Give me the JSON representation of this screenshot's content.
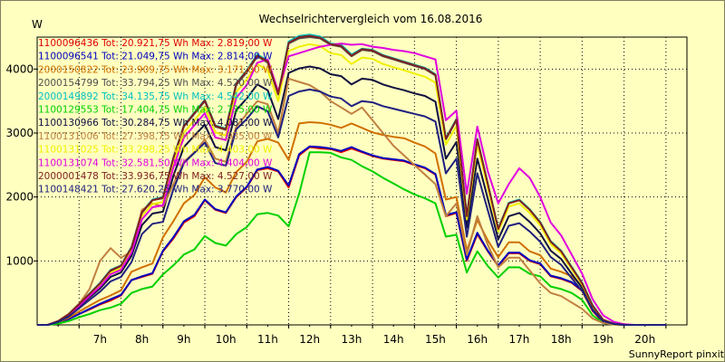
{
  "chart_data": {
    "type": "line",
    "title": "Wechselrichtervergleich vom 16.08.2016",
    "ylabel": "W",
    "xlabel": "",
    "footer": "SunnyReport pinxit",
    "ylim": [
      0,
      4500
    ],
    "xlim": [
      6.0,
      21.5
    ],
    "y_ticks": [
      1000,
      2000,
      3000,
      4000
    ],
    "x_ticks": [
      "7h",
      "8h",
      "9h",
      "10h",
      "11h",
      "12h",
      "13h",
      "14h",
      "15h",
      "16h",
      "17h",
      "18h",
      "19h",
      "20h"
    ],
    "grid": true,
    "legend_position": "top-left",
    "x": [
      6.0,
      6.25,
      6.5,
      6.75,
      7.0,
      7.25,
      7.5,
      7.75,
      8.0,
      8.25,
      8.5,
      8.75,
      9.0,
      9.25,
      9.5,
      9.75,
      10.0,
      10.25,
      10.5,
      10.75,
      11.0,
      11.25,
      11.5,
      11.75,
      12.0,
      12.25,
      12.5,
      12.75,
      13.0,
      13.25,
      13.5,
      13.75,
      14.0,
      14.25,
      14.5,
      14.75,
      15.0,
      15.25,
      15.5,
      15.75,
      16.0,
      16.25,
      16.5,
      16.75,
      17.0,
      17.25,
      17.5,
      17.75,
      18.0,
      18.25,
      18.5,
      18.75,
      19.0,
      19.25,
      19.5,
      19.75,
      20.0,
      20.25,
      20.5,
      20.75,
      21.0
    ],
    "series": [
      {
        "name": "1100096436",
        "legend": "1100096436 Tot: 20.921,75 Wh Max: 2.819,00 W",
        "color": "#e00000",
        "values": [
          0,
          0,
          30,
          90,
          170,
          240,
          320,
          380,
          460,
          700,
          750,
          800,
          1150,
          1350,
          1600,
          1700,
          1950,
          1800,
          1750,
          2000,
          2150,
          2420,
          2450,
          2400,
          2150,
          2650,
          2780,
          2760,
          2750,
          2700,
          2760,
          2700,
          2640,
          2600,
          2580,
          2560,
          2500,
          2450,
          2350,
          1700,
          1750,
          1000,
          1420,
          1150,
          920,
          1120,
          1120,
          1000,
          950,
          760,
          720,
          660,
          530,
          220,
          40,
          10,
          0,
          0,
          0,
          0,
          0
        ]
      },
      {
        "name": "1100096541",
        "legend": "1100096541 Tot: 21.049,75 Wh Max: 2.814,00 W",
        "color": "#0000c0",
        "values": [
          0,
          0,
          30,
          90,
          170,
          250,
          330,
          400,
          470,
          700,
          760,
          810,
          1160,
          1370,
          1620,
          1720,
          1960,
          1810,
          1760,
          2010,
          2160,
          2430,
          2470,
          2410,
          2180,
          2670,
          2790,
          2780,
          2760,
          2720,
          2780,
          2710,
          2650,
          2610,
          2590,
          2570,
          2510,
          2460,
          2360,
          1720,
          1760,
          1020,
          1440,
          1160,
          930,
          1130,
          1130,
          1010,
          960,
          770,
          730,
          670,
          540,
          230,
          50,
          10,
          0,
          0,
          0,
          0,
          0
        ]
      },
      {
        "name": "2000150822",
        "legend": "2000150822 Tot: 23.909,75 Wh Max: 3.171,00 W",
        "color": "#d07000",
        "values": [
          0,
          0,
          40,
          110,
          210,
          300,
          390,
          460,
          540,
          830,
          900,
          960,
          1370,
          1620,
          1900,
          2030,
          2310,
          2150,
          2070,
          2390,
          2550,
          2870,
          2910,
          2850,
          2580,
          3150,
          3170,
          3160,
          3130,
          3080,
          3150,
          3080,
          3010,
          2970,
          2940,
          2920,
          2850,
          2790,
          2680,
          1960,
          2000,
          1160,
          1640,
          1320,
          1060,
          1290,
          1290,
          1150,
          1090,
          880,
          830,
          760,
          610,
          260,
          50,
          10,
          0,
          0,
          0,
          0,
          0
        ]
      },
      {
        "name": "2000154799",
        "legend": "2000154799 Tot: 33.794,25 Wh Max: 4.520,00 W",
        "color": "#505050",
        "values": [
          0,
          0,
          60,
          160,
          320,
          480,
          640,
          840,
          920,
          1200,
          1750,
          1950,
          1980,
          2600,
          3100,
          3300,
          3500,
          3100,
          3050,
          3750,
          3950,
          4200,
          4100,
          3600,
          4400,
          4480,
          4500,
          4480,
          4380,
          4350,
          4200,
          4300,
          4280,
          4200,
          4150,
          4100,
          4050,
          4000,
          3900,
          2900,
          3200,
          1700,
          2900,
          2200,
          1500,
          1900,
          1950,
          1800,
          1600,
          1300,
          1150,
          900,
          650,
          300,
          80,
          20,
          0,
          0,
          0,
          0,
          0
        ]
      },
      {
        "name": "2000149892",
        "legend": "2000149892 Tot: 34.135,75 Wh Max: 4.542,00 W",
        "color": "#00c0c0",
        "values": [
          0,
          0,
          60,
          170,
          330,
          490,
          660,
          860,
          930,
          1220,
          1770,
          1960,
          2000,
          2620,
          3120,
          3320,
          3520,
          3120,
          3070,
          3780,
          3980,
          4230,
          4130,
          3620,
          4430,
          4520,
          4540,
          4510,
          4400,
          4380,
          4230,
          4320,
          4300,
          4220,
          4170,
          4120,
          4070,
          4020,
          3920,
          2920,
          3220,
          1710,
          2910,
          2210,
          1510,
          1910,
          1960,
          1810,
          1610,
          1310,
          1160,
          910,
          660,
          310,
          80,
          20,
          0,
          0,
          0,
          0,
          0
        ]
      },
      {
        "name": "1100129553",
        "legend": "1100129553 Tot: 17.404,75 Wh Max: 2.735,00 W",
        "color": "#00d000",
        "values": [
          0,
          0,
          20,
          60,
          120,
          170,
          230,
          270,
          330,
          500,
          560,
          600,
          790,
          930,
          1100,
          1180,
          1390,
          1280,
          1240,
          1420,
          1530,
          1730,
          1750,
          1710,
          1540,
          2050,
          2700,
          2700,
          2690,
          2620,
          2580,
          2480,
          2400,
          2300,
          2210,
          2120,
          2040,
          1980,
          1900,
          1380,
          1410,
          820,
          1150,
          920,
          740,
          900,
          900,
          800,
          760,
          600,
          560,
          500,
          390,
          150,
          30,
          5,
          0,
          0,
          0,
          0,
          0
        ]
      },
      {
        "name": "1100130966",
        "legend": "1100130966 Tot: 30.284,75 Wh Max: 4.081,00 W",
        "color": "#101040",
        "values": [
          0,
          0,
          50,
          140,
          290,
          430,
          570,
          750,
          820,
          1080,
          1560,
          1740,
          1770,
          2330,
          2780,
          2960,
          3130,
          2780,
          2730,
          3360,
          3540,
          3760,
          3670,
          3220,
          3940,
          4010,
          4040,
          4010,
          3920,
          3890,
          3760,
          3850,
          3830,
          3760,
          3710,
          3670,
          3620,
          3580,
          3490,
          2600,
          2860,
          1520,
          2600,
          1970,
          1340,
          1700,
          1750,
          1610,
          1430,
          1160,
          1030,
          800,
          580,
          270,
          70,
          15,
          0,
          0,
          0,
          0,
          0
        ]
      },
      {
        "name": "1100131006",
        "legend": "1100131006 Tot: 27.398,75 Wh Max: 3.935,00 W",
        "color": "#c08040",
        "values": [
          0,
          0,
          60,
          170,
          330,
          560,
          1000,
          1200,
          1050,
          1150,
          1800,
          1900,
          1850,
          2200,
          2550,
          2700,
          2900,
          2600,
          2550,
          3100,
          3300,
          3500,
          3450,
          3000,
          3850,
          3800,
          3750,
          3650,
          3500,
          3400,
          3300,
          3400,
          3200,
          3000,
          2800,
          2650,
          2500,
          2350,
          2200,
          1700,
          1900,
          1100,
          1700,
          1250,
          900,
          1050,
          1050,
          850,
          650,
          500,
          450,
          350,
          250,
          100,
          30,
          5,
          0,
          0,
          0,
          0,
          0
        ]
      },
      {
        "name": "1100131025",
        "legend": "1100131025 Tot: 33.298,25 Wh Max: 4.403,00 W",
        "color": "#f0f000",
        "values": [
          0,
          0,
          55,
          155,
          310,
          465,
          620,
          815,
          890,
          1165,
          1700,
          1890,
          1920,
          2520,
          3010,
          3200,
          3400,
          3010,
          2960,
          3640,
          3840,
          4080,
          3980,
          3500,
          4280,
          4350,
          4390,
          4360,
          4250,
          4220,
          4080,
          4180,
          4160,
          4080,
          4030,
          3980,
          3930,
          3880,
          3790,
          2820,
          3110,
          1650,
          2820,
          2140,
          1460,
          1850,
          1900,
          1750,
          1560,
          1260,
          1120,
          870,
          630,
          290,
          75,
          20,
          0,
          0,
          0,
          0,
          0
        ]
      },
      {
        "name": "1100131074",
        "legend": "1100131074 Tot: 32.581,50 Wh Max: 4.404,00 W",
        "color": "#e000e0",
        "values": [
          0,
          0,
          55,
          155,
          300,
          450,
          600,
          790,
          860,
          1130,
          1650,
          1840,
          1870,
          2460,
          2930,
          3120,
          3310,
          2930,
          2890,
          3550,
          3750,
          4100,
          4150,
          3650,
          4200,
          4250,
          4300,
          4350,
          4380,
          4400,
          4380,
          4390,
          4350,
          4330,
          4300,
          4280,
          4250,
          4200,
          4150,
          3200,
          3350,
          2050,
          3100,
          2400,
          1900,
          2200,
          2450,
          2300,
          2000,
          1600,
          1400,
          1100,
          800,
          400,
          150,
          50,
          10,
          0,
          0,
          0,
          0
        ]
      },
      {
        "name": "2000001478",
        "legend": "2000001478 Tot: 33.936,75 Wh Max: 4.527,00 W",
        "color": "#802020",
        "values": [
          0,
          0,
          60,
          165,
          325,
          485,
          650,
          850,
          925,
          1210,
          1760,
          1950,
          1990,
          2610,
          3110,
          3310,
          3510,
          3110,
          3060,
          3770,
          3970,
          4210,
          4120,
          3610,
          4410,
          4500,
          4520,
          4490,
          4390,
          4360,
          4210,
          4310,
          4290,
          4210,
          4160,
          4110,
          4060,
          4010,
          3910,
          2910,
          3210,
          1700,
          2900,
          2200,
          1500,
          1900,
          1950,
          1800,
          1600,
          1300,
          1150,
          900,
          650,
          300,
          80,
          20,
          0,
          0,
          0,
          0,
          0
        ]
      },
      {
        "name": "1100148421",
        "legend": "1100148421 Tot: 27.620,25 Wh Max: 3.770,00 W",
        "color": "#202080",
        "values": [
          0,
          0,
          45,
          130,
          260,
          390,
          520,
          680,
          750,
          980,
          1420,
          1580,
          1610,
          2120,
          2530,
          2690,
          2850,
          2530,
          2490,
          3060,
          3220,
          3420,
          3340,
          2930,
          3580,
          3650,
          3680,
          3650,
          3570,
          3540,
          3420,
          3500,
          3480,
          3420,
          3380,
          3340,
          3300,
          3260,
          3180,
          2370,
          2600,
          1380,
          2370,
          1790,
          1220,
          1550,
          1590,
          1460,
          1300,
          1060,
          940,
          730,
          530,
          240,
          60,
          15,
          0,
          0,
          0,
          0,
          0
        ]
      }
    ]
  }
}
